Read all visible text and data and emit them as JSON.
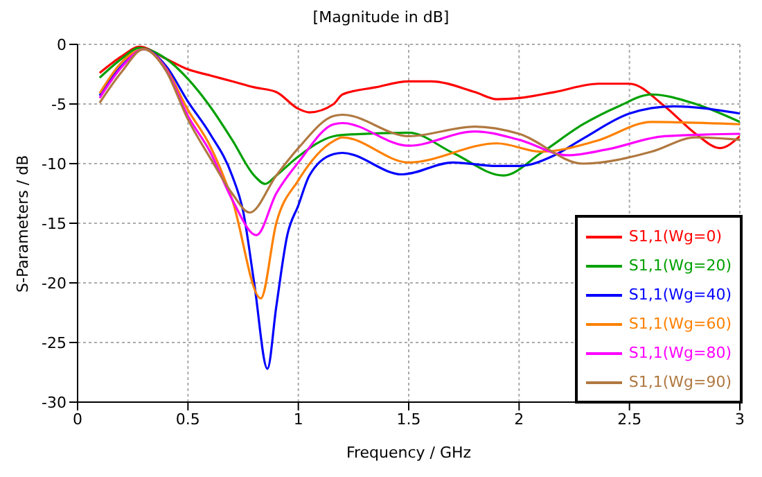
{
  "chart_data": {
    "type": "line",
    "title": "[Magnitude in dB]",
    "xlabel": "Frequency / GHz",
    "ylabel": "S-Parameters / dB",
    "xlim": [
      0,
      3
    ],
    "xticks": [
      0,
      0.5,
      1,
      1.5,
      2,
      2.5,
      3
    ],
    "ylim": [
      -30,
      0
    ],
    "yticks": [
      -30,
      -25,
      -20,
      -15,
      -10,
      -5,
      0
    ],
    "grid": true,
    "legend": "bottom right",
    "marker": "none",
    "line_style": "solid",
    "series": [
      {
        "name": "S1,1(Wg=0)",
        "color": "#ff0000",
        "x": [
          0.1,
          0.2,
          0.28,
          0.4,
          0.5,
          0.6,
          0.7,
          0.8,
          0.9,
          1.0,
          1.05,
          1.16,
          1.2,
          1.35,
          1.5,
          1.6,
          1.8,
          1.9,
          2.0,
          2.16,
          2.36,
          2.5,
          2.66,
          2.8,
          2.91,
          3.0
        ],
        "values": [
          -2.4,
          -1.0,
          -0.2,
          -1.2,
          -2.1,
          -2.6,
          -3.1,
          -3.6,
          -4.0,
          -5.4,
          -5.7,
          -5.0,
          -4.2,
          -3.6,
          -3.1,
          -3.1,
          -4.0,
          -4.6,
          -4.5,
          -4.0,
          -3.3,
          -3.3,
          -5.2,
          -7.5,
          -8.7,
          -7.7
        ]
      },
      {
        "name": "S1,1(Wg=20)",
        "color": "#00a000",
        "x": [
          0.1,
          0.2,
          0.28,
          0.4,
          0.5,
          0.6,
          0.7,
          0.8,
          0.85,
          0.9,
          1.0,
          1.16,
          1.2,
          1.5,
          1.7,
          1.93,
          2.1,
          2.29,
          2.45,
          2.6,
          2.8,
          3.0
        ],
        "values": [
          -2.8,
          -1.2,
          -0.3,
          -1.2,
          -2.9,
          -5.2,
          -8.0,
          -11.0,
          -11.7,
          -11.0,
          -9.4,
          -7.7,
          -7.6,
          -7.4,
          -9.1,
          -11.0,
          -9.1,
          -6.7,
          -5.2,
          -4.2,
          -5.0,
          -6.5
        ]
      },
      {
        "name": "S1,1(Wg=40)",
        "color": "#0000ff",
        "x": [
          0.1,
          0.2,
          0.3,
          0.4,
          0.5,
          0.6,
          0.7,
          0.75,
          0.8,
          0.86,
          0.9,
          0.95,
          1.0,
          1.05,
          1.16,
          1.2,
          1.47,
          1.7,
          1.9,
          2.0,
          2.16,
          2.29,
          2.5,
          2.7,
          3.0
        ],
        "values": [
          -4.3,
          -1.8,
          -0.4,
          -1.8,
          -4.8,
          -7.5,
          -11.0,
          -14.0,
          -20.0,
          -27.2,
          -22.0,
          -16.0,
          -13.5,
          -11.0,
          -9.2,
          -9.1,
          -10.9,
          -9.9,
          -10.2,
          -10.2,
          -9.3,
          -7.9,
          -5.8,
          -5.2,
          -5.8
        ]
      },
      {
        "name": "S1,1(Wg=60)",
        "color": "#ff8000",
        "x": [
          0.1,
          0.2,
          0.3,
          0.4,
          0.5,
          0.6,
          0.7,
          0.83,
          0.9,
          1.0,
          1.16,
          1.2,
          1.5,
          1.9,
          2.1,
          2.35,
          2.6,
          3.0
        ],
        "values": [
          -4.1,
          -1.5,
          -0.4,
          -2.0,
          -5.5,
          -8.5,
          -13.0,
          -21.3,
          -15.0,
          -11.4,
          -8.1,
          -7.8,
          -9.9,
          -8.3,
          -9.0,
          -8.1,
          -6.5,
          -6.7
        ]
      },
      {
        "name": "S1,1(Wg=80)",
        "color": "#ff00ff",
        "x": [
          0.1,
          0.2,
          0.3,
          0.4,
          0.5,
          0.6,
          0.7,
          0.81,
          0.9,
          1.0,
          1.16,
          1.2,
          1.5,
          1.8,
          2.0,
          2.22,
          2.4,
          2.66,
          3.0
        ],
        "values": [
          -4.5,
          -1.9,
          -0.4,
          -2.1,
          -6.0,
          -9.0,
          -13.0,
          -16.0,
          -12.5,
          -9.9,
          -6.7,
          -6.6,
          -8.5,
          -7.3,
          -8.0,
          -9.3,
          -8.8,
          -7.7,
          -7.5
        ]
      },
      {
        "name": "S1,1(Wg=90)",
        "color": "#b07840",
        "x": [
          0.1,
          0.2,
          0.3,
          0.4,
          0.5,
          0.6,
          0.7,
          0.78,
          0.9,
          1.0,
          1.16,
          1.2,
          1.5,
          1.8,
          2.0,
          2.29,
          2.6,
          2.8,
          3.0
        ],
        "values": [
          -4.9,
          -2.3,
          -0.4,
          -2.2,
          -6.3,
          -9.5,
          -12.5,
          -14.1,
          -11.0,
          -8.7,
          -6.0,
          -5.9,
          -7.7,
          -6.9,
          -7.5,
          -10.0,
          -9.0,
          -7.8,
          -8.0
        ]
      }
    ]
  }
}
